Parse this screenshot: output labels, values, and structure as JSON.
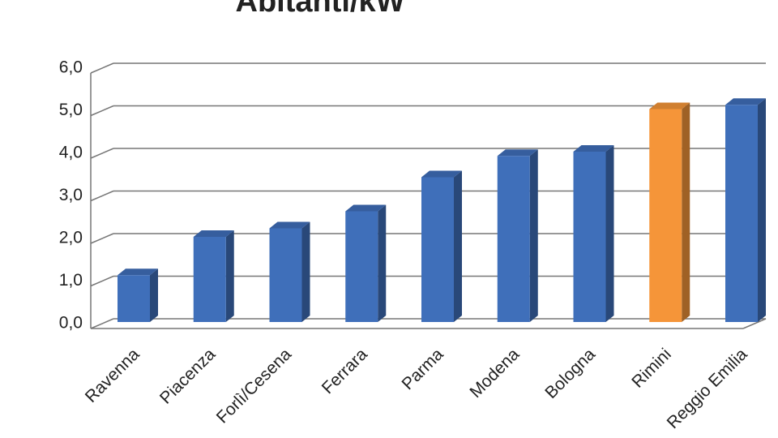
{
  "chart_data": {
    "type": "bar3d",
    "title": "Abitanti/kW",
    "categories": [
      "Ravenna",
      "Piacenza",
      "Forlì/Cesena",
      "Ferrara",
      "Parma",
      "Modena",
      "Bologna",
      "Rimini",
      "Reggio Emilia"
    ],
    "values": [
      1.1,
      2.0,
      2.2,
      2.6,
      3.4,
      3.9,
      4.0,
      5.0,
      5.1
    ],
    "colors": [
      "#3f6fba",
      "#3f6fba",
      "#3f6fba",
      "#3f6fba",
      "#3f6fba",
      "#3f6fba",
      "#3f6fba",
      "#f59539",
      "#3f6fba"
    ],
    "ylim": [
      0,
      6
    ],
    "yticks": [
      {
        "value": 0,
        "label": "0,0"
      },
      {
        "value": 1,
        "label": "1,0"
      },
      {
        "value": 2,
        "label": "2,0"
      },
      {
        "value": 3,
        "label": "3,0"
      },
      {
        "value": 4,
        "label": "4,0"
      },
      {
        "value": 5,
        "label": "5,0"
      },
      {
        "value": 6,
        "label": "6,0"
      }
    ],
    "grid": true
  }
}
